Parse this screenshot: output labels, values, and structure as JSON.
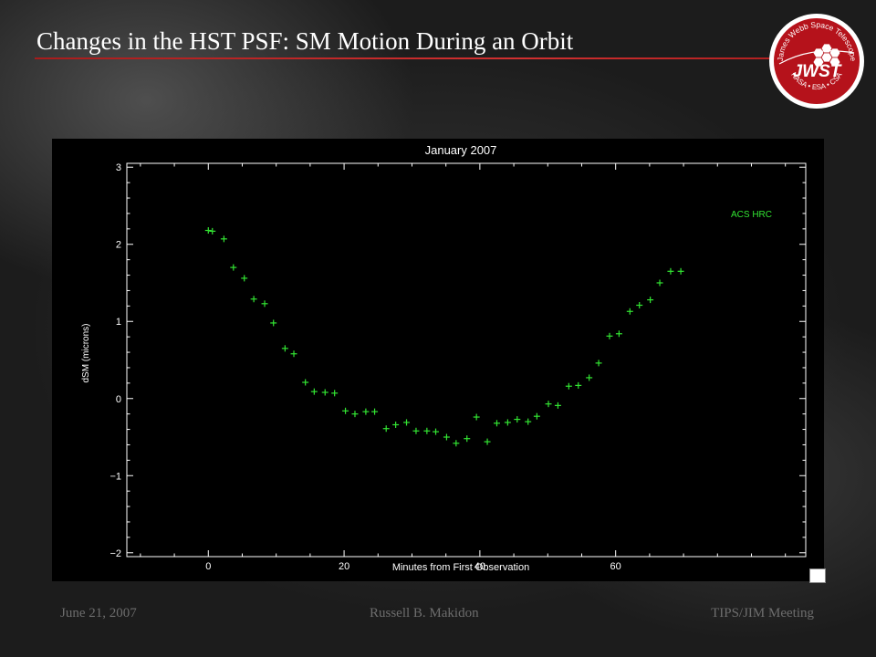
{
  "slide": {
    "title": "Changes in the HST PSF: SM Motion During an Orbit"
  },
  "logo": {
    "arc_text": "James Webb Space Telescope",
    "wordmark": "JWST",
    "agencies": "NASA • ESA • CSA",
    "colors": {
      "ring": "#ffffff",
      "badge": "#b5121b"
    }
  },
  "chart_data": {
    "type": "scatter",
    "title": "January 2007",
    "xlabel": "Minutes from First Observation",
    "ylabel": "dSM (microns)",
    "xlim": [
      -12,
      88
    ],
    "ylim": [
      -2.05,
      3.05
    ],
    "xticks": [
      0,
      20,
      40,
      60
    ],
    "xtick_labels": [
      "0",
      "20",
      "40",
      "60"
    ],
    "yticks": [
      -2,
      -1,
      0,
      1,
      2,
      3
    ],
    "ytick_labels": [
      "−2",
      "−1",
      "0",
      "1",
      "2",
      "3"
    ],
    "grid": false,
    "legend_position": "top-right",
    "marker": "+",
    "colors": {
      "background": "#000000",
      "axes": "#ffffff",
      "points": "#33e533",
      "legend": "#33e533"
    },
    "series": [
      {
        "name": "ACS HRC",
        "x": [
          0.0,
          0.6,
          2.3,
          3.7,
          5.3,
          6.7,
          8.3,
          9.6,
          11.3,
          12.6,
          14.3,
          15.6,
          17.2,
          18.6,
          20.2,
          21.6,
          23.2,
          24.5,
          26.2,
          27.6,
          29.2,
          30.6,
          32.2,
          33.5,
          35.1,
          36.5,
          38.1,
          39.5,
          41.1,
          42.5,
          44.1,
          45.5,
          47.1,
          48.4,
          50.1,
          51.5,
          53.1,
          54.5,
          56.1,
          57.5,
          59.1,
          60.5,
          62.1,
          63.5,
          65.1,
          66.5,
          68.1,
          69.6
        ],
        "y": [
          2.18,
          2.17,
          2.07,
          1.7,
          1.56,
          1.29,
          1.23,
          0.98,
          0.65,
          0.58,
          0.21,
          0.09,
          0.08,
          0.07,
          -0.16,
          -0.2,
          -0.17,
          -0.17,
          -0.39,
          -0.34,
          -0.31,
          -0.42,
          -0.42,
          -0.43,
          -0.5,
          -0.58,
          -0.52,
          -0.24,
          -0.56,
          -0.32,
          -0.31,
          -0.27,
          -0.3,
          -0.23,
          -0.07,
          -0.09,
          0.16,
          0.17,
          0.27,
          0.46,
          0.81,
          0.84,
          1.13,
          1.21,
          1.28,
          1.5,
          1.65,
          1.65
        ]
      }
    ]
  },
  "footer": {
    "date": "June 21, 2007",
    "author": "Russell B. Makidon",
    "meeting": "TIPS/JIM Meeting"
  }
}
